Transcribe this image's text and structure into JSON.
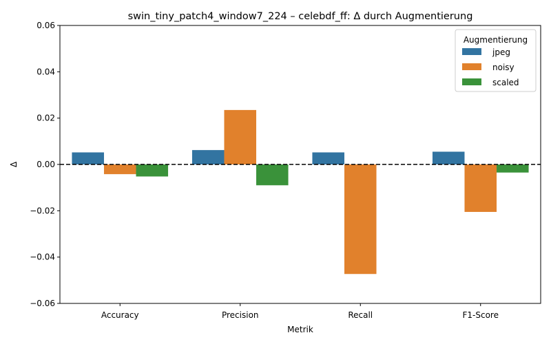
{
  "chart_data": {
    "type": "bar",
    "title": "swin_tiny_patch4_window7_224 – celebdf_ff: Δ durch Augmentierung",
    "xlabel": "Metrik",
    "ylabel": "Δ",
    "ylim": [
      -0.06,
      0.06
    ],
    "yticks": [
      -0.06,
      -0.04,
      -0.02,
      0.0,
      0.02,
      0.04,
      0.06
    ],
    "ytick_labels": [
      "−0.06",
      "−0.04",
      "−0.02",
      "0.00",
      "0.02",
      "0.04",
      "0.06"
    ],
    "categories": [
      "Accuracy",
      "Precision",
      "Recall",
      "F1-Score"
    ],
    "series": [
      {
        "name": "jpeg",
        "color": "#3274a1",
        "values": [
          0.0052,
          0.0062,
          0.0052,
          0.0055
        ]
      },
      {
        "name": "noisy",
        "color": "#e1812c",
        "values": [
          -0.0042,
          0.0235,
          -0.0473,
          -0.0205
        ]
      },
      {
        "name": "scaled",
        "color": "#3a923a",
        "values": [
          -0.0052,
          -0.009,
          0.0,
          -0.0035
        ]
      }
    ],
    "reference_line": {
      "y": 0.0,
      "style": "dashed",
      "color": "#000000"
    },
    "legend": {
      "title": "Augmentierung",
      "placement": "top-right"
    },
    "grid": false
  }
}
